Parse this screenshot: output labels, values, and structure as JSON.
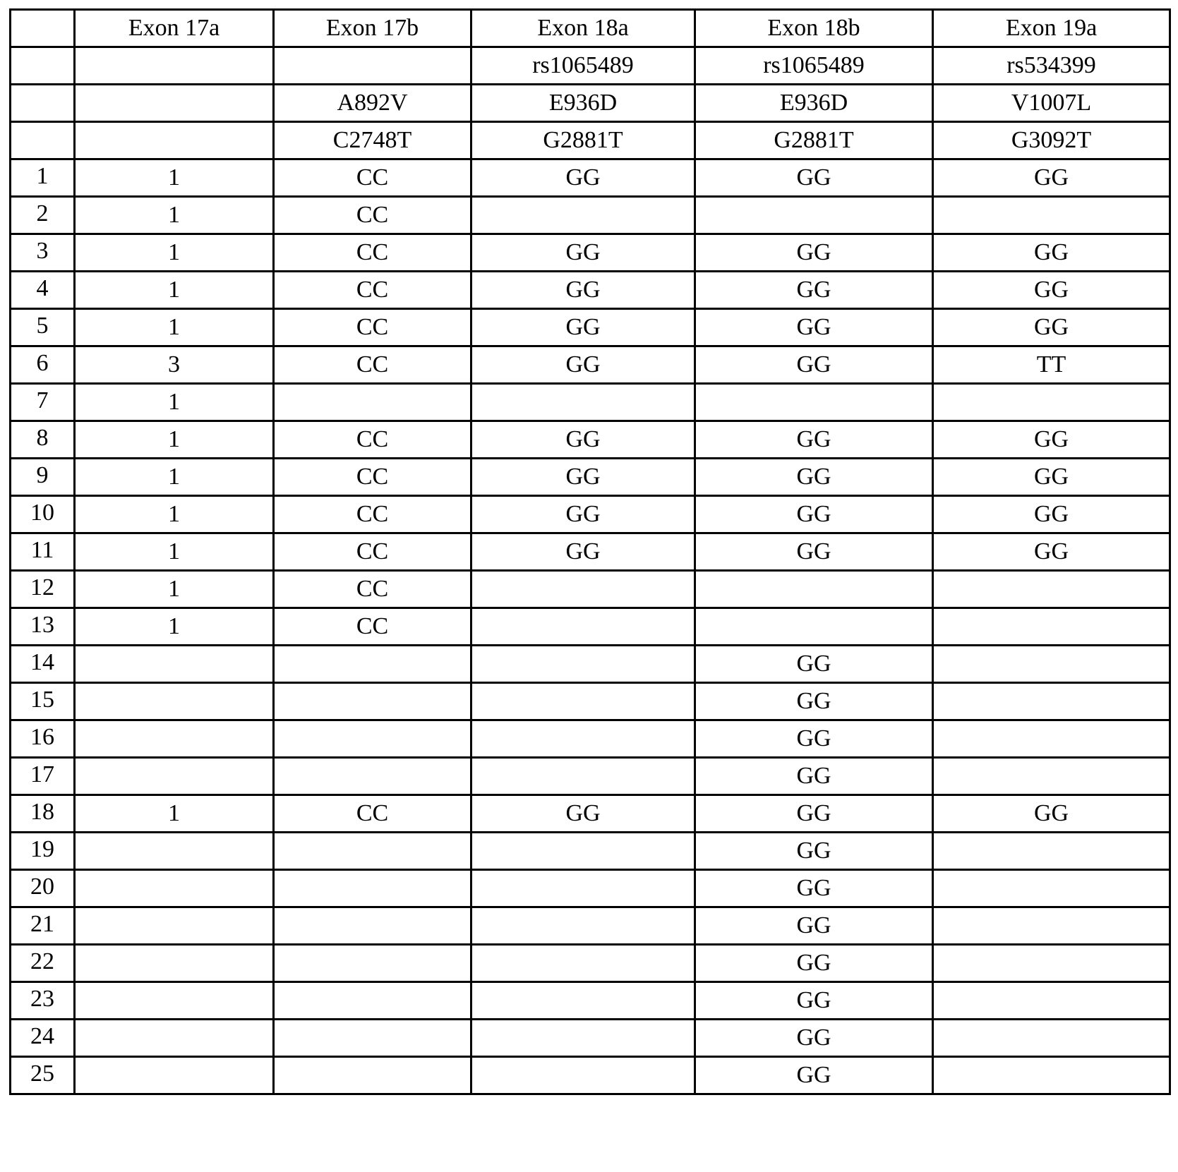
{
  "header_rows": [
    [
      "",
      "Exon 17a",
      "Exon 17b",
      "Exon 18a",
      "Exon 18b",
      "Exon 19a"
    ],
    [
      "",
      "",
      "",
      "rs1065489",
      "rs1065489",
      "rs534399"
    ],
    [
      "",
      "",
      "A892V",
      "E936D",
      "E936D",
      "V1007L"
    ],
    [
      "",
      "",
      "C2748T",
      "G2881T",
      "G2881T",
      "G3092T"
    ]
  ],
  "rows": [
    [
      "1",
      "1",
      "CC",
      "GG",
      "GG",
      "GG"
    ],
    [
      "2",
      "1",
      "CC",
      "",
      "",
      ""
    ],
    [
      "3",
      "1",
      "CC",
      "GG",
      "GG",
      "GG"
    ],
    [
      "4",
      "1",
      "CC",
      "GG",
      "GG",
      "GG"
    ],
    [
      "5",
      "1",
      "CC",
      "GG",
      "GG",
      "GG"
    ],
    [
      "6",
      "3",
      "CC",
      "GG",
      "GG",
      "TT"
    ],
    [
      "7",
      "1",
      "",
      "",
      "",
      ""
    ],
    [
      "8",
      "1",
      "CC",
      "GG",
      "GG",
      "GG"
    ],
    [
      "9",
      "1",
      "CC",
      "GG",
      "GG",
      "GG"
    ],
    [
      "10",
      "1",
      "CC",
      "GG",
      "GG",
      "GG"
    ],
    [
      "11",
      "1",
      "CC",
      "GG",
      "GG",
      "GG"
    ],
    [
      "12",
      "1",
      "CC",
      "",
      "",
      ""
    ],
    [
      "13",
      "1",
      "CC",
      "",
      "",
      ""
    ],
    [
      "14",
      "",
      "",
      "",
      "GG",
      ""
    ],
    [
      "15",
      "",
      "",
      "",
      "GG",
      ""
    ],
    [
      "16",
      "",
      "",
      "",
      "GG",
      ""
    ],
    [
      "17",
      "",
      "",
      "",
      "GG",
      ""
    ],
    [
      "18",
      "1",
      "CC",
      "GG",
      "GG",
      "GG"
    ],
    [
      "19",
      "",
      "",
      "",
      "GG",
      ""
    ],
    [
      "20",
      "",
      "",
      "",
      "GG",
      ""
    ],
    [
      "21",
      "",
      "",
      "",
      "GG",
      ""
    ],
    [
      "22",
      "",
      "",
      "",
      "GG",
      ""
    ],
    [
      "23",
      "",
      "",
      "",
      "GG",
      ""
    ],
    [
      "24",
      "",
      "",
      "",
      "GG",
      ""
    ],
    [
      "25",
      "",
      "",
      "",
      "GG",
      ""
    ]
  ]
}
